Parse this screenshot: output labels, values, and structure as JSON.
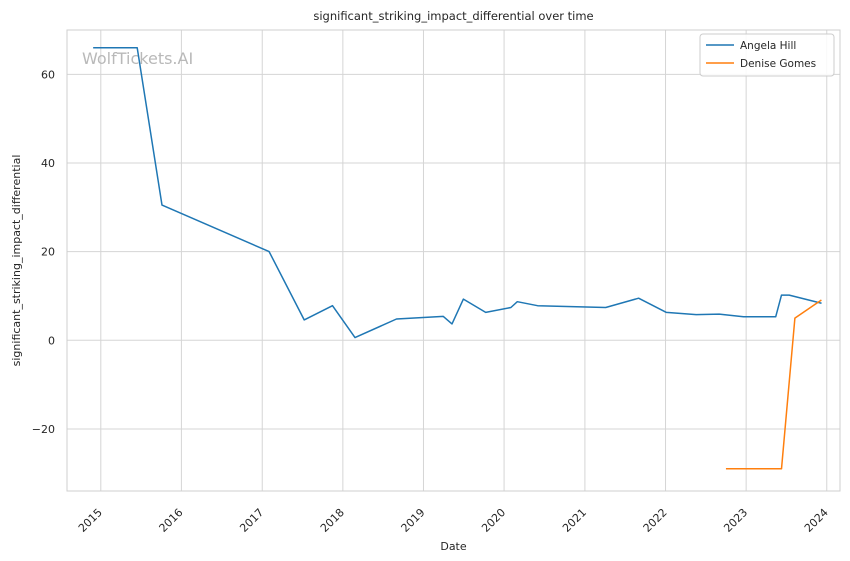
{
  "chart_data": {
    "type": "line",
    "title": "significant_striking_impact_differential over time",
    "xlabel": "Date",
    "ylabel": "significant_striking_impact_differential",
    "watermark": "WolfTickets.AI",
    "xlim": [
      "2014-08-01",
      "2024-03-01"
    ],
    "ylim": [
      -34,
      70
    ],
    "x_ticks": [
      "2015",
      "2016",
      "2017",
      "2018",
      "2019",
      "2020",
      "2021",
      "2022",
      "2023",
      "2024"
    ],
    "y_ticks": [
      -20,
      0,
      20,
      40,
      60
    ],
    "y_tick_labels": [
      "−20",
      "0",
      "20",
      "40",
      "60"
    ],
    "grid": true,
    "legend_position": "top-right",
    "series": [
      {
        "name": "Angela Hill",
        "color": "#1f77b4",
        "points": [
          [
            "2014-12-01",
            66
          ],
          [
            "2015-06-15",
            66
          ],
          [
            "2015-10-05",
            30.5
          ],
          [
            "2017-02-01",
            20
          ],
          [
            "2017-07-10",
            4.6
          ],
          [
            "2017-11-15",
            7.8
          ],
          [
            "2018-02-25",
            0.6
          ],
          [
            "2018-09-01",
            4.8
          ],
          [
            "2019-04-01",
            5.4
          ],
          [
            "2019-05-10",
            3.7
          ],
          [
            "2019-07-01",
            9.3
          ],
          [
            "2019-10-10",
            6.3
          ],
          [
            "2020-02-01",
            7.4
          ],
          [
            "2020-03-01",
            8.7
          ],
          [
            "2020-06-01",
            7.8
          ],
          [
            "2021-04-05",
            7.4
          ],
          [
            "2021-09-01",
            9.5
          ],
          [
            "2022-01-05",
            6.3
          ],
          [
            "2022-05-20",
            5.8
          ],
          [
            "2022-09-01",
            5.9
          ],
          [
            "2022-12-20",
            5.3
          ],
          [
            "2023-05-15",
            5.3
          ],
          [
            "2023-06-10",
            10.2
          ],
          [
            "2023-07-15",
            10.2
          ],
          [
            "2023-12-05",
            8.4
          ]
        ]
      },
      {
        "name": "Denise Gomes",
        "color": "#ff7f0e",
        "points": [
          [
            "2022-10-05",
            -29
          ],
          [
            "2023-06-10",
            -29
          ],
          [
            "2023-08-10",
            5
          ],
          [
            "2023-12-05",
            9
          ]
        ]
      }
    ]
  }
}
